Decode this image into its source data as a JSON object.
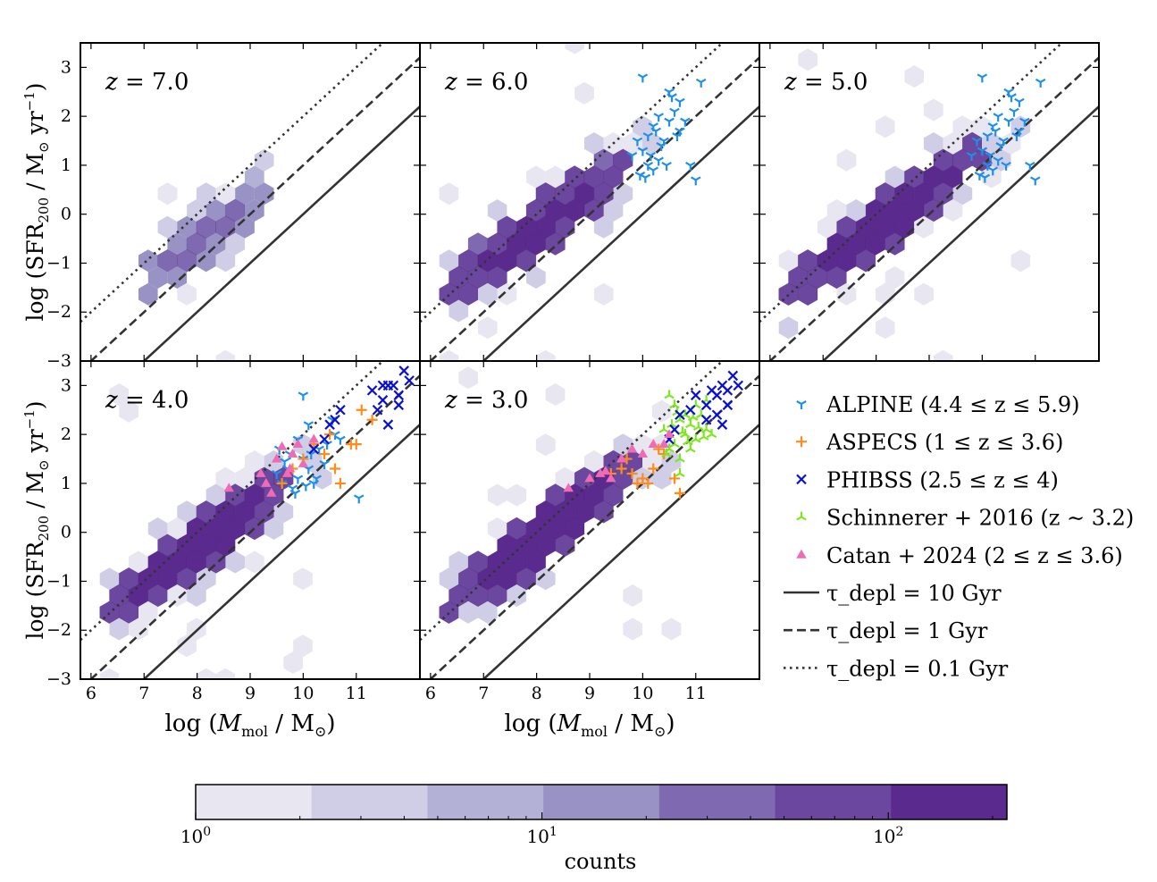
{
  "figure": {
    "colorbar": {
      "label": "counts",
      "ticks": [
        "10^0",
        "10^1",
        "10^2"
      ],
      "tick_values": [
        1,
        10,
        100
      ],
      "range": [
        1,
        220
      ],
      "log_scale": true,
      "bins": 7,
      "colors": [
        "#e7e6f1",
        "#cfcee6",
        "#b3b1d6",
        "#9993c5",
        "#7f69b0",
        "#6b479f",
        "#5b2a8e"
      ]
    },
    "axis_labels": {
      "x": "log (M_mol / M_⊙)",
      "y": "log (SFR_200 / M_⊙ yr^−1)"
    },
    "legend": [
      {
        "label": "ALPINE (4.4 ≤ z ≤ 5.9)",
        "marker": "tri_down",
        "color": "#1e90e8"
      },
      {
        "label": "ASPECS (1 ≤ z ≤ 3.6)",
        "marker": "plus",
        "color": "#ff8c1a"
      },
      {
        "label": "PHIBSS (2.5 ≤ z ≤ 4)",
        "marker": "x",
        "color": "#0a10d0"
      },
      {
        "label": "Schinnerer + 2016 (z ∼ 3.2)",
        "marker": "tri_up",
        "color": "#7ee81e"
      },
      {
        "label": "Catan + 2024 (2 ≤ z ≤ 3.6)",
        "marker": "triangle",
        "color": "#f06bb4"
      },
      {
        "label": "τ_depl = 10 Gyr",
        "marker": "solid",
        "color": "#333333"
      },
      {
        "label": "τ_depl = 1 Gyr",
        "marker": "dashed",
        "color": "#333333"
      },
      {
        "label": "τ_depl = 0.1 Gyr",
        "marker": "dotted",
        "color": "#333333"
      }
    ]
  },
  "chart_data": [
    {
      "type": "scatter",
      "panel_label": "z = 7.0",
      "xlim": [
        5.8,
        12.2
      ],
      "ylim": [
        -3,
        3.5
      ],
      "xticks": [
        6,
        7,
        8,
        9,
        10,
        11
      ],
      "yticks": [
        -3,
        -2,
        -1,
        0,
        1,
        2,
        3
      ],
      "hexbin": {
        "x_center": 8.1,
        "y_center": -0.5,
        "x_min": 7.0,
        "x_max": 9.4,
        "slope": 0.8,
        "scatter": 0.35,
        "peak_count": 30
      },
      "depletion_lines": [
        {
          "tau_gyr": 10,
          "style": "solid"
        },
        {
          "tau_gyr": 1,
          "style": "dashed"
        },
        {
          "tau_gyr": 0.1,
          "style": "dotted"
        }
      ],
      "observations": {}
    },
    {
      "type": "scatter",
      "panel_label": "z = 6.0",
      "xlim": [
        5.8,
        12.2
      ],
      "ylim": [
        -3,
        3.5
      ],
      "xticks": [
        6,
        7,
        8,
        9,
        10,
        11
      ],
      "yticks": [
        -3,
        -2,
        -1,
        0,
        1,
        2,
        3
      ],
      "hexbin": {
        "x_center": 8.0,
        "y_center": -0.3,
        "x_min": 6.2,
        "x_max": 10.2,
        "slope": 0.75,
        "scatter": 0.4,
        "peak_count": 150
      },
      "depletion_lines": [
        {
          "tau_gyr": 10,
          "style": "solid"
        },
        {
          "tau_gyr": 1,
          "style": "dashed"
        },
        {
          "tau_gyr": 0.1,
          "style": "dotted"
        }
      ],
      "observations": {
        "ALPINE": [
          [
            9.8,
            1.2
          ],
          [
            9.9,
            1.5
          ],
          [
            10.0,
            1.3
          ],
          [
            10.1,
            1.6
          ],
          [
            10.2,
            1.8
          ],
          [
            10.3,
            2.0
          ],
          [
            10.4,
            1.5
          ],
          [
            10.5,
            1.9
          ],
          [
            10.6,
            2.1
          ],
          [
            10.7,
            1.7
          ],
          [
            10.3,
            1.1
          ],
          [
            10.1,
            1.0
          ],
          [
            9.95,
            0.8
          ],
          [
            10.2,
            0.9
          ],
          [
            10.45,
            1.0
          ],
          [
            10.55,
            2.4
          ],
          [
            10.7,
            2.3
          ],
          [
            10.5,
            2.5
          ],
          [
            10.0,
            2.8
          ],
          [
            10.9,
            1.0
          ],
          [
            11.0,
            0.7
          ],
          [
            11.1,
            2.7
          ],
          [
            10.8,
            1.9
          ],
          [
            10.35,
            1.4
          ],
          [
            10.25,
            1.7
          ],
          [
            10.65,
            1.6
          ],
          [
            10.15,
            1.2
          ],
          [
            10.05,
            0.75
          ]
        ]
      }
    },
    {
      "type": "scatter",
      "panel_label": "z = 5.0",
      "xlim": [
        5.8,
        12.2
      ],
      "ylim": [
        -3,
        3.5
      ],
      "xticks": [
        6,
        7,
        8,
        9,
        10,
        11
      ],
      "yticks": [
        -3,
        -2,
        -1,
        0,
        1,
        2,
        3
      ],
      "hexbin": {
        "x_center": 8.2,
        "y_center": -0.1,
        "x_min": 6.2,
        "x_max": 10.8,
        "slope": 0.8,
        "scatter": 0.4,
        "peak_count": 200
      },
      "depletion_lines": [
        {
          "tau_gyr": 10,
          "style": "solid"
        },
        {
          "tau_gyr": 1,
          "style": "dashed"
        },
        {
          "tau_gyr": 0.1,
          "style": "dotted"
        }
      ],
      "observations": {
        "ALPINE": [
          [
            9.8,
            1.2
          ],
          [
            9.9,
            1.5
          ],
          [
            10.0,
            1.3
          ],
          [
            10.1,
            1.6
          ],
          [
            10.2,
            1.8
          ],
          [
            10.3,
            2.0
          ],
          [
            10.4,
            1.5
          ],
          [
            10.5,
            1.9
          ],
          [
            10.6,
            2.1
          ],
          [
            10.7,
            1.7
          ],
          [
            10.3,
            1.1
          ],
          [
            10.1,
            1.0
          ],
          [
            9.95,
            0.8
          ],
          [
            10.2,
            0.9
          ],
          [
            10.45,
            1.0
          ],
          [
            10.55,
            2.4
          ],
          [
            10.7,
            2.3
          ],
          [
            10.5,
            2.5
          ],
          [
            10.0,
            2.8
          ],
          [
            10.9,
            1.0
          ],
          [
            11.0,
            0.7
          ],
          [
            11.1,
            2.7
          ],
          [
            10.8,
            1.9
          ],
          [
            10.35,
            1.4
          ],
          [
            10.25,
            1.7
          ],
          [
            10.65,
            1.6
          ],
          [
            10.15,
            1.2
          ],
          [
            10.05,
            0.75
          ]
        ]
      }
    },
    {
      "type": "scatter",
      "panel_label": "z = 4.0",
      "xlim": [
        5.8,
        12.2
      ],
      "ylim": [
        -3,
        3.5
      ],
      "xticks": [
        6,
        7,
        8,
        9,
        10,
        11
      ],
      "yticks": [
        -3,
        -2,
        -1,
        0,
        1,
        2,
        3
      ],
      "hexbin": {
        "x_center": 8.0,
        "y_center": -0.3,
        "x_min": 6.3,
        "x_max": 10.6,
        "slope": 0.8,
        "scatter": 0.4,
        "peak_count": 200
      },
      "depletion_lines": [
        {
          "tau_gyr": 10,
          "style": "solid"
        },
        {
          "tau_gyr": 1,
          "style": "dashed"
        },
        {
          "tau_gyr": 0.1,
          "style": "dotted"
        }
      ],
      "observations": {
        "ALPINE": [
          [
            9.5,
            1.2
          ],
          [
            9.6,
            1.0
          ],
          [
            9.7,
            1.3
          ],
          [
            9.8,
            0.9
          ],
          [
            9.9,
            1.1
          ],
          [
            10.0,
            1.5
          ],
          [
            10.1,
            1.3
          ],
          [
            10.2,
            1.0
          ],
          [
            10.3,
            1.7
          ],
          [
            10.4,
            1.4
          ],
          [
            9.85,
            0.8
          ],
          [
            10.0,
            2.8
          ],
          [
            10.1,
            2.2
          ],
          [
            9.75,
            1.6
          ],
          [
            9.9,
            1.9
          ],
          [
            10.6,
            2.0
          ],
          [
            10.55,
            2.3
          ],
          [
            11.05,
            0.7
          ],
          [
            10.7,
            1.9
          ],
          [
            10.15,
            1.6
          ],
          [
            10.25,
            1.1
          ],
          [
            9.65,
            1.45
          ],
          [
            10.45,
            1.8
          ],
          [
            9.55,
            1.7
          ],
          [
            10.05,
            0.95
          ]
        ],
        "ASPECS": [
          [
            9.6,
            1.0
          ],
          [
            9.8,
            1.3
          ],
          [
            10.0,
            1.5
          ],
          [
            10.2,
            1.8
          ],
          [
            10.4,
            1.6
          ],
          [
            10.6,
            1.3
          ],
          [
            10.7,
            1.0
          ],
          [
            10.9,
            1.8
          ],
          [
            11.0,
            1.8
          ],
          [
            11.1,
            2.5
          ],
          [
            11.3,
            2.3
          ],
          [
            10.5,
            2.0
          ]
        ],
        "PHIBSS": [
          [
            10.2,
            1.7
          ],
          [
            10.4,
            1.9
          ],
          [
            10.6,
            2.3
          ],
          [
            10.7,
            2.5
          ],
          [
            10.5,
            2.2
          ],
          [
            11.3,
            2.9
          ],
          [
            11.5,
            2.7
          ],
          [
            11.6,
            3.0
          ],
          [
            11.7,
            3.0
          ],
          [
            11.8,
            2.8
          ],
          [
            11.9,
            3.3
          ],
          [
            12.0,
            3.1
          ],
          [
            11.8,
            2.6
          ],
          [
            11.6,
            2.2
          ],
          [
            11.4,
            2.5
          ],
          [
            11.5,
            3.0
          ]
        ],
        "Catan": [
          [
            8.6,
            0.9
          ],
          [
            9.2,
            1.2
          ],
          [
            9.4,
            0.8
          ],
          [
            9.5,
            1.5
          ],
          [
            9.7,
            1.2
          ],
          [
            9.8,
            1.6
          ],
          [
            9.9,
            1.8
          ],
          [
            10.0,
            1.4
          ],
          [
            9.3,
            1.0
          ],
          [
            9.6,
            1.75
          ],
          [
            10.2,
            1.9
          ],
          [
            9.75,
            1.3
          ]
        ]
      }
    },
    {
      "type": "scatter",
      "panel_label": "z = 3.0",
      "xlim": [
        5.8,
        12.2
      ],
      "ylim": [
        -3,
        3.5
      ],
      "xticks": [
        6,
        7,
        8,
        9,
        10,
        11
      ],
      "yticks": [
        -3,
        -2,
        -1,
        0,
        1,
        2,
        3
      ],
      "hexbin": {
        "x_center": 8.2,
        "y_center": 0.0,
        "x_min": 6.2,
        "x_max": 10.6,
        "slope": 0.8,
        "scatter": 0.4,
        "peak_count": 200
      },
      "depletion_lines": [
        {
          "tau_gyr": 10,
          "style": "solid"
        },
        {
          "tau_gyr": 1,
          "style": "dashed"
        },
        {
          "tau_gyr": 0.1,
          "style": "dotted"
        }
      ],
      "observations": {
        "ASPECS": [
          [
            9.4,
            1.2
          ],
          [
            9.6,
            1.3
          ],
          [
            9.8,
            1.2
          ],
          [
            9.9,
            1.0
          ],
          [
            10.0,
            1.1
          ],
          [
            10.1,
            1.0
          ],
          [
            10.2,
            1.3
          ],
          [
            10.4,
            1.6
          ],
          [
            10.6,
            1.1
          ],
          [
            10.7,
            0.8
          ],
          [
            10.3,
            1.7
          ],
          [
            9.7,
            1.5
          ]
        ],
        "PHIBSS": [
          [
            10.5,
            1.9
          ],
          [
            10.6,
            2.1
          ],
          [
            10.7,
            2.4
          ],
          [
            10.9,
            2.5
          ],
          [
            11.0,
            2.8
          ],
          [
            11.2,
            2.6
          ],
          [
            11.3,
            2.9
          ],
          [
            11.4,
            2.8
          ],
          [
            11.5,
            3.0
          ],
          [
            11.6,
            2.9
          ],
          [
            11.7,
            3.2
          ],
          [
            11.8,
            3.0
          ],
          [
            11.6,
            2.6
          ],
          [
            11.5,
            2.2
          ],
          [
            11.4,
            2.4
          ],
          [
            11.2,
            2.3
          ]
        ],
        "Schinnerer": [
          [
            10.4,
            2.1
          ],
          [
            10.5,
            1.7
          ],
          [
            10.6,
            2.6
          ],
          [
            10.7,
            2.3
          ],
          [
            10.8,
            2.0
          ],
          [
            10.9,
            2.2
          ],
          [
            11.0,
            1.9
          ],
          [
            11.1,
            2.4
          ],
          [
            11.2,
            2.1
          ],
          [
            10.5,
            2.8
          ],
          [
            10.7,
            1.5
          ],
          [
            10.9,
            1.7
          ],
          [
            11.0,
            2.6
          ],
          [
            10.6,
            1.8
          ],
          [
            10.8,
            2.4
          ],
          [
            11.3,
            2.0
          ],
          [
            11.2,
            2.7
          ],
          [
            10.55,
            2.2
          ],
          [
            10.75,
            2.05
          ],
          [
            10.95,
            2.35
          ],
          [
            11.05,
            2.15
          ],
          [
            10.65,
            2.45
          ],
          [
            10.85,
            1.85
          ],
          [
            11.15,
            1.95
          ],
          [
            10.45,
            1.6
          ],
          [
            10.7,
            1.2
          ]
        ],
        "Catan": [
          [
            8.6,
            0.9
          ],
          [
            9.0,
            1.1
          ],
          [
            9.2,
            1.2
          ],
          [
            9.4,
            1.1
          ],
          [
            9.6,
            1.5
          ],
          [
            9.8,
            1.7
          ],
          [
            10.0,
            1.6
          ],
          [
            10.2,
            1.8
          ],
          [
            10.4,
            1.8
          ],
          [
            10.5,
            2.0
          ],
          [
            9.3,
            1.25
          ]
        ]
      }
    }
  ]
}
